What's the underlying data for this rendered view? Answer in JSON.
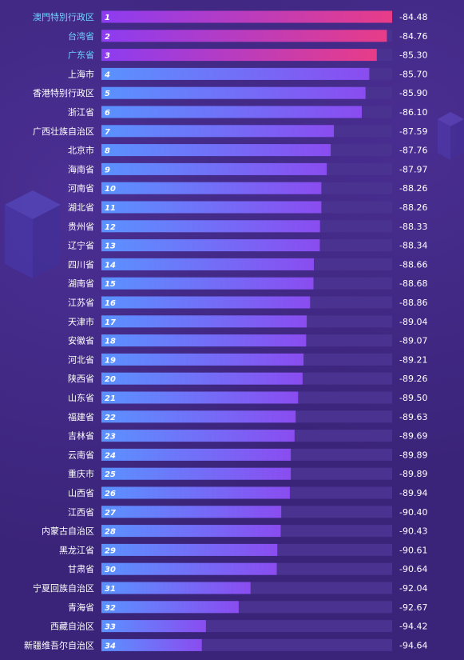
{
  "colors": {
    "background": "#3a2479",
    "track": "#4a3290",
    "bar_top_start": "#a63cf0",
    "bar_top_end": "#e63c8c",
    "bar_start": "#5a8cff",
    "bar_end": "#8a4cf0",
    "top_label": "#6fd3ff",
    "label": "#ffffff"
  },
  "chart_data": {
    "type": "bar",
    "orientation": "horizontal",
    "title": "",
    "xlabel": "",
    "ylabel": "",
    "highlight_top": 3,
    "xlim": [
      -100,
      -84.48
    ],
    "categories": [
      "澳門特別行政区",
      "台湾省",
      "广东省",
      "上海市",
      "香港特别行政区",
      "浙江省",
      "广西壮族自治区",
      "北京市",
      "海南省",
      "河南省",
      "湖北省",
      "贵州省",
      "辽宁省",
      "四川省",
      "湖南省",
      "江苏省",
      "天津市",
      "安徽省",
      "河北省",
      "陕西省",
      "山东省",
      "福建省",
      "吉林省",
      "云南省",
      "重庆市",
      "山西省",
      "江西省",
      "内蒙古自治区",
      "黑龙江省",
      "甘肃省",
      "宁夏回族自治区",
      "青海省",
      "西藏自治区",
      "新疆维吾尔自治区"
    ],
    "ranks": [
      "1",
      "2",
      "3",
      "4",
      "5",
      "6",
      "7",
      "8",
      "9",
      "10",
      "11",
      "12",
      "13",
      "14",
      "15",
      "16",
      "17",
      "18",
      "19",
      "20",
      "21",
      "22",
      "23",
      "24",
      "25",
      "26",
      "27",
      "28",
      "29",
      "30",
      "31",
      "32",
      "33",
      "34"
    ],
    "value_labels": [
      "-84.48",
      "-84.76",
      "-85.30",
      "-85.70",
      "-85.90",
      "-86.10",
      "-87.59",
      "-87.76",
      "-87.97",
      "-88.26",
      "-88.26",
      "-88.33",
      "-88.34",
      "-88.66",
      "-88.68",
      "-88.86",
      "-89.04",
      "-89.07",
      "-89.21",
      "-89.26",
      "-89.50",
      "-89.63",
      "-89.69",
      "-89.89",
      "-89.89",
      "-89.94",
      "-90.40",
      "-90.43",
      "-90.61",
      "-90.64",
      "-92.04",
      "-92.67",
      "-94.42",
      "-94.64"
    ],
    "values": [
      -84.48,
      -84.76,
      -85.3,
      -85.7,
      -85.9,
      -86.1,
      -87.59,
      -87.76,
      -87.97,
      -88.26,
      -88.26,
      -88.33,
      -88.34,
      -88.66,
      -88.68,
      -88.86,
      -89.04,
      -89.07,
      -89.21,
      -89.26,
      -89.5,
      -89.63,
      -89.69,
      -89.89,
      -89.89,
      -89.94,
      -90.4,
      -90.43,
      -90.61,
      -90.64,
      -92.04,
      -92.67,
      -94.42,
      -94.64
    ]
  }
}
